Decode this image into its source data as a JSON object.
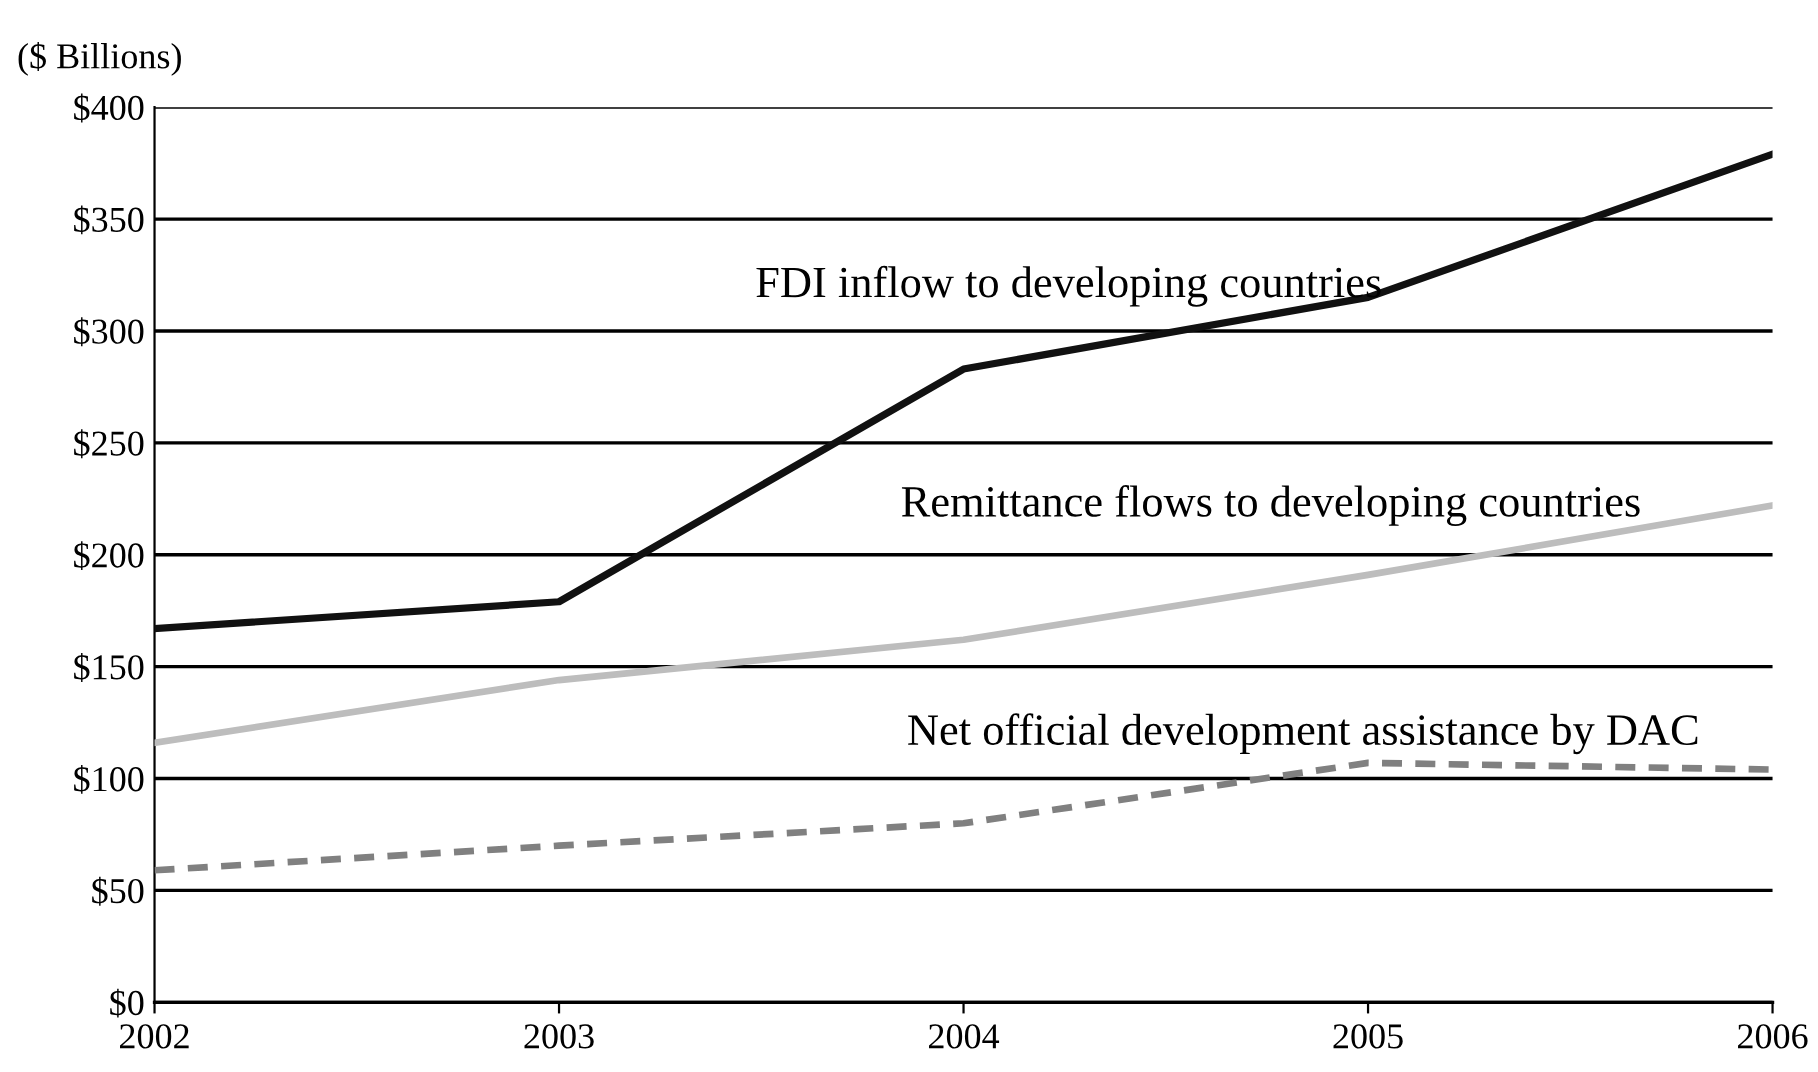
{
  "chart_data": {
    "type": "line",
    "ylabel": "($ Billions)",
    "x": [
      2002,
      2003,
      2004,
      2005,
      2006
    ],
    "series": [
      {
        "name": "FDI inflow to developing countries",
        "color": "#111111",
        "values": [
          167,
          179,
          283,
          315,
          379
        ],
        "line_style": "solid"
      },
      {
        "name": "Remittance flows to developing countries",
        "color": "#bdbdbd",
        "values": [
          116,
          144,
          162,
          191,
          222
        ],
        "line_style": "solid"
      },
      {
        "name": "Net official development assistance by DAC",
        "color": "#808080",
        "values": [
          59,
          70,
          80,
          107,
          104
        ],
        "line_style": "dashed"
      }
    ],
    "xlim": [
      2002,
      2006
    ],
    "xticks": [
      2002,
      2003,
      2004,
      2005,
      2006
    ],
    "ylim": [
      0,
      400
    ],
    "yticks": [
      {
        "value": 0,
        "label": "$0"
      },
      {
        "value": 50,
        "label": "$50"
      },
      {
        "value": 100,
        "label": "$100"
      },
      {
        "value": 150,
        "label": "$150"
      },
      {
        "value": 200,
        "label": "$200"
      },
      {
        "value": 250,
        "label": "$250"
      },
      {
        "value": 300,
        "label": "$300"
      },
      {
        "value": 350,
        "label": "$350"
      },
      {
        "value": 400,
        "label": "$400"
      }
    ],
    "grid": "y",
    "legend": false,
    "marker": "none"
  }
}
